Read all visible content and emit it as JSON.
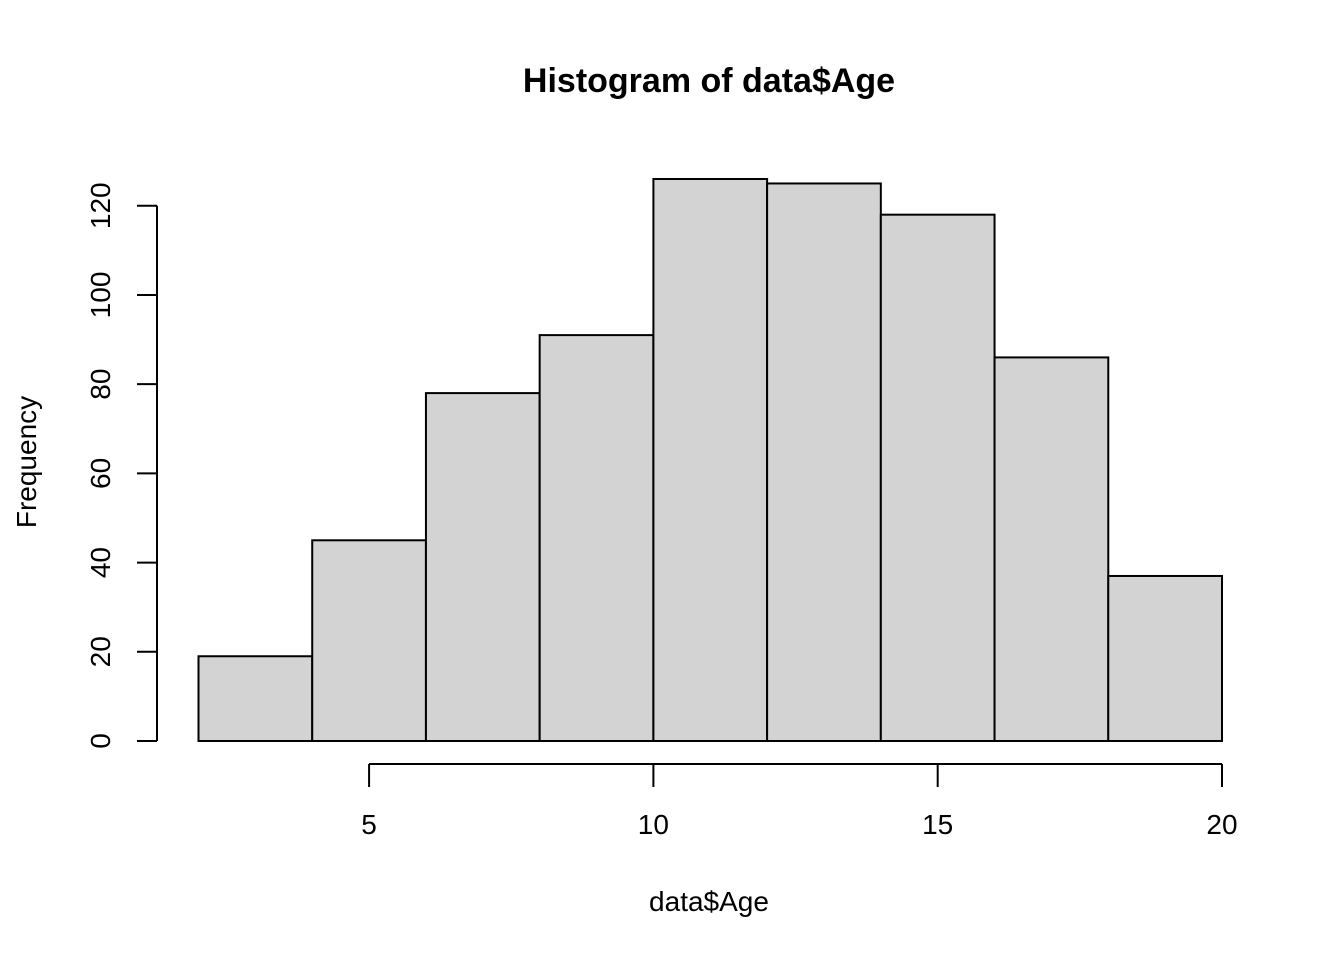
{
  "chart_data": {
    "type": "bar",
    "subtype": "histogram",
    "title": "Histogram of data$Age",
    "xlabel": "data$Age",
    "ylabel": "Frequency",
    "bins": [
      {
        "x0": 2,
        "x1": 4,
        "count": 19
      },
      {
        "x0": 4,
        "x1": 6,
        "count": 45
      },
      {
        "x0": 6,
        "x1": 8,
        "count": 78
      },
      {
        "x0": 8,
        "x1": 10,
        "count": 91
      },
      {
        "x0": 10,
        "x1": 12,
        "count": 126
      },
      {
        "x0": 12,
        "x1": 14,
        "count": 125
      },
      {
        "x0": 14,
        "x1": 16,
        "count": 118
      },
      {
        "x0": 16,
        "x1": 18,
        "count": 86
      },
      {
        "x0": 18,
        "x1": 20,
        "count": 37
      }
    ],
    "x_ticks": [
      5,
      10,
      15,
      20
    ],
    "y_ticks": [
      0,
      20,
      40,
      60,
      80,
      100,
      120
    ],
    "xlim": [
      2,
      20
    ],
    "ylim": [
      0,
      126
    ],
    "grid": false,
    "colors": {
      "bar_fill": "#d3d3d3",
      "bar_stroke": "#000000"
    }
  }
}
